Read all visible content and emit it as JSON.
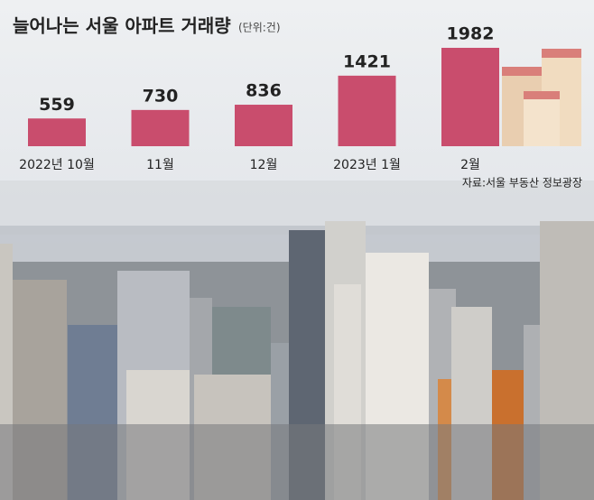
{
  "chart_data": {
    "type": "bar",
    "title": "늘어나는 서울 아파트 거래량",
    "unit": "(단위:건)",
    "categories": [
      "2022년 10월",
      "11월",
      "12월",
      "2023년 1월",
      "2월"
    ],
    "values": [
      559,
      730,
      836,
      1421,
      1982
    ],
    "color": "#c94d6d",
    "source": "자료:서울 부동산 정보광장"
  }
}
